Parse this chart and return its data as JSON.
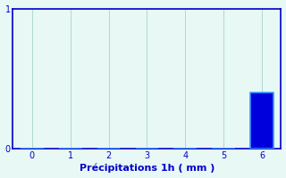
{
  "categories": [
    0,
    1,
    2,
    3,
    4,
    5,
    6
  ],
  "values": [
    0,
    0,
    0,
    0,
    0,
    0,
    0.4
  ],
  "bar_color": "#0000dd",
  "bar_edge_color": "#3399ff",
  "background_color": "#e8f8f5",
  "axis_color": "#0000cc",
  "grid_color": "#b0d8d0",
  "xlabel": "Précipitations 1h ( mm )",
  "xlabel_color": "#0000cc",
  "tick_color": "#0000cc",
  "ylim": [
    0,
    1
  ],
  "xlim": [
    -0.5,
    6.5
  ],
  "yticks": [
    0,
    1
  ],
  "xticks": [
    0,
    1,
    2,
    3,
    4,
    5,
    6
  ],
  "bar_width": 0.6,
  "xlabel_fontsize": 8,
  "tick_fontsize": 7
}
